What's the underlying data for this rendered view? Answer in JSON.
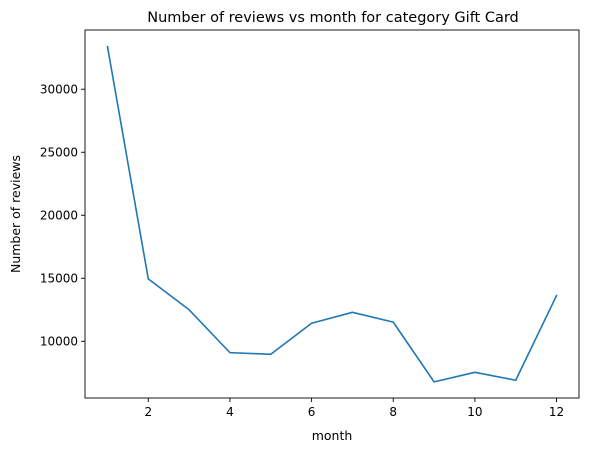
{
  "chart_data": {
    "type": "line",
    "title": "Number of reviews vs month for category Gift Card",
    "xlabel": "month",
    "ylabel": "Number of reviews",
    "xlim": [
      0.45,
      12.55
    ],
    "ylim": [
      5500,
      34700
    ],
    "x_ticks": [
      2,
      4,
      6,
      8,
      10,
      12
    ],
    "y_ticks": [
      10000,
      15000,
      20000,
      25000,
      30000
    ],
    "grid": false,
    "legend": "none",
    "series": [
      {
        "color": "#1f77b4",
        "x": [
          1,
          2,
          3,
          4,
          5,
          6,
          7,
          8,
          9,
          10,
          11,
          12
        ],
        "y": [
          33400,
          14950,
          12500,
          9100,
          8970,
          11430,
          12300,
          11520,
          6780,
          7540,
          6910,
          13630
        ]
      }
    ]
  }
}
